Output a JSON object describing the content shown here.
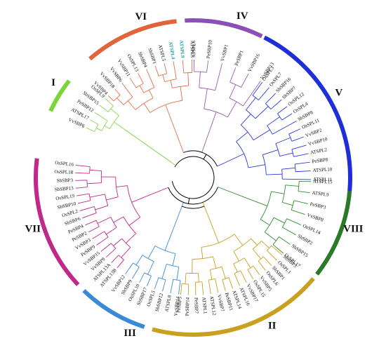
{
  "diagram": {
    "groups": [
      {
        "id": "VI",
        "label": "VI",
        "color": "#e2643c",
        "branch_color": "#e0704a",
        "leaves": [
          "VvSBP4",
          "VvSBP18",
          "VvSBP6",
          "VvSBP11",
          "OsSPL13",
          "SbSBP4",
          "SbSBP1",
          "ATSPL5",
          "ATSPL4",
          "ATSPL9b",
          "ATSPL3"
        ]
      },
      {
        "id": "IV",
        "label": "IV",
        "color": "#8a4fb8",
        "branch_color": "#9a5cb8",
        "leaves": [
          "ATSPL6",
          "PeSBP10",
          "VvSBP1",
          "PeSBP1",
          "VvSBP16",
          "VvSBP13"
        ]
      },
      {
        "id": "V",
        "label": "V",
        "color": "#1f2fd8",
        "branch_color": "#2a3ad8",
        "leaves": [
          "OsSPL3",
          "OsSPL7",
          "SbSBP16",
          "SbSBP7",
          "OsSPL12",
          "OsSPL4",
          "SbSBP8",
          "OsSPL11",
          "VvSBP2",
          "VvSBP10",
          "ATSPL2",
          "PeSBP8",
          "ATSPL10",
          "ATSPL11"
        ]
      },
      {
        "id": "VIII",
        "label": "VIII",
        "color": "#2a7a2a",
        "branch_color": "#2f8f2f",
        "leaves": [
          "ATSPL15",
          "ATSPL9",
          "PeSBP3",
          "VvSBP8",
          "OsSPL14",
          "SbSBP2",
          "SbSBP15",
          "OsSPL17"
        ]
      },
      {
        "id": "II",
        "label": "II",
        "color": "#c9a020",
        "branch_color": "#c9a020",
        "leaves": [
          "SbSBP3",
          "OsSPL1",
          "SbSBP1",
          "OsSPL6",
          "VvSBP5",
          "OsSPL15",
          "VvSBP17",
          "ATSPL16",
          "ATSPL14",
          "PeSBP11",
          "VvSBP7",
          "ATSPL12",
          "ATSPL1",
          "PeSBP7",
          "PeSBP14",
          "PeSBP5"
        ]
      },
      {
        "id": "III",
        "label": "III",
        "color": "#3a8ad8",
        "branch_color": "#3a8ad8",
        "leaves": [
          "VvSBP14",
          "ATSPL8",
          "SbSBP12",
          "OsSPL5",
          "SbSBP17",
          "OsSPL10",
          "SbSBP9",
          "VvSBP12"
        ]
      },
      {
        "id": "VII",
        "label": "VII",
        "color": "#c0288a",
        "branch_color": "#c0288a",
        "leaves": [
          "ATSPL13B",
          "ATSPL13A",
          "VvSBP9",
          "VvSBP15",
          "PeSBP9",
          "VvSBP3",
          "PeSBP2",
          "PeSBP4",
          "SbSBP6",
          "OsSPL2",
          "SbSBP10",
          "OsSPL19",
          "SbSBP13",
          "SbSBP3",
          "OsSPL18",
          "OsSPL16"
        ]
      },
      {
        "id": "I",
        "label": "I",
        "color": "#7ad63a",
        "branch_color": "#8ad650",
        "leaves": [
          "VvSBP6",
          "ATSPL17",
          "PeSBP12",
          "SbSBP15",
          "OsSPL9"
        ]
      }
    ],
    "root_color": "#000000",
    "highlight_color": "#1fa0a0",
    "highlighted_leaves": [
      "ATSPL4",
      "ATSPL9b"
    ]
  }
}
